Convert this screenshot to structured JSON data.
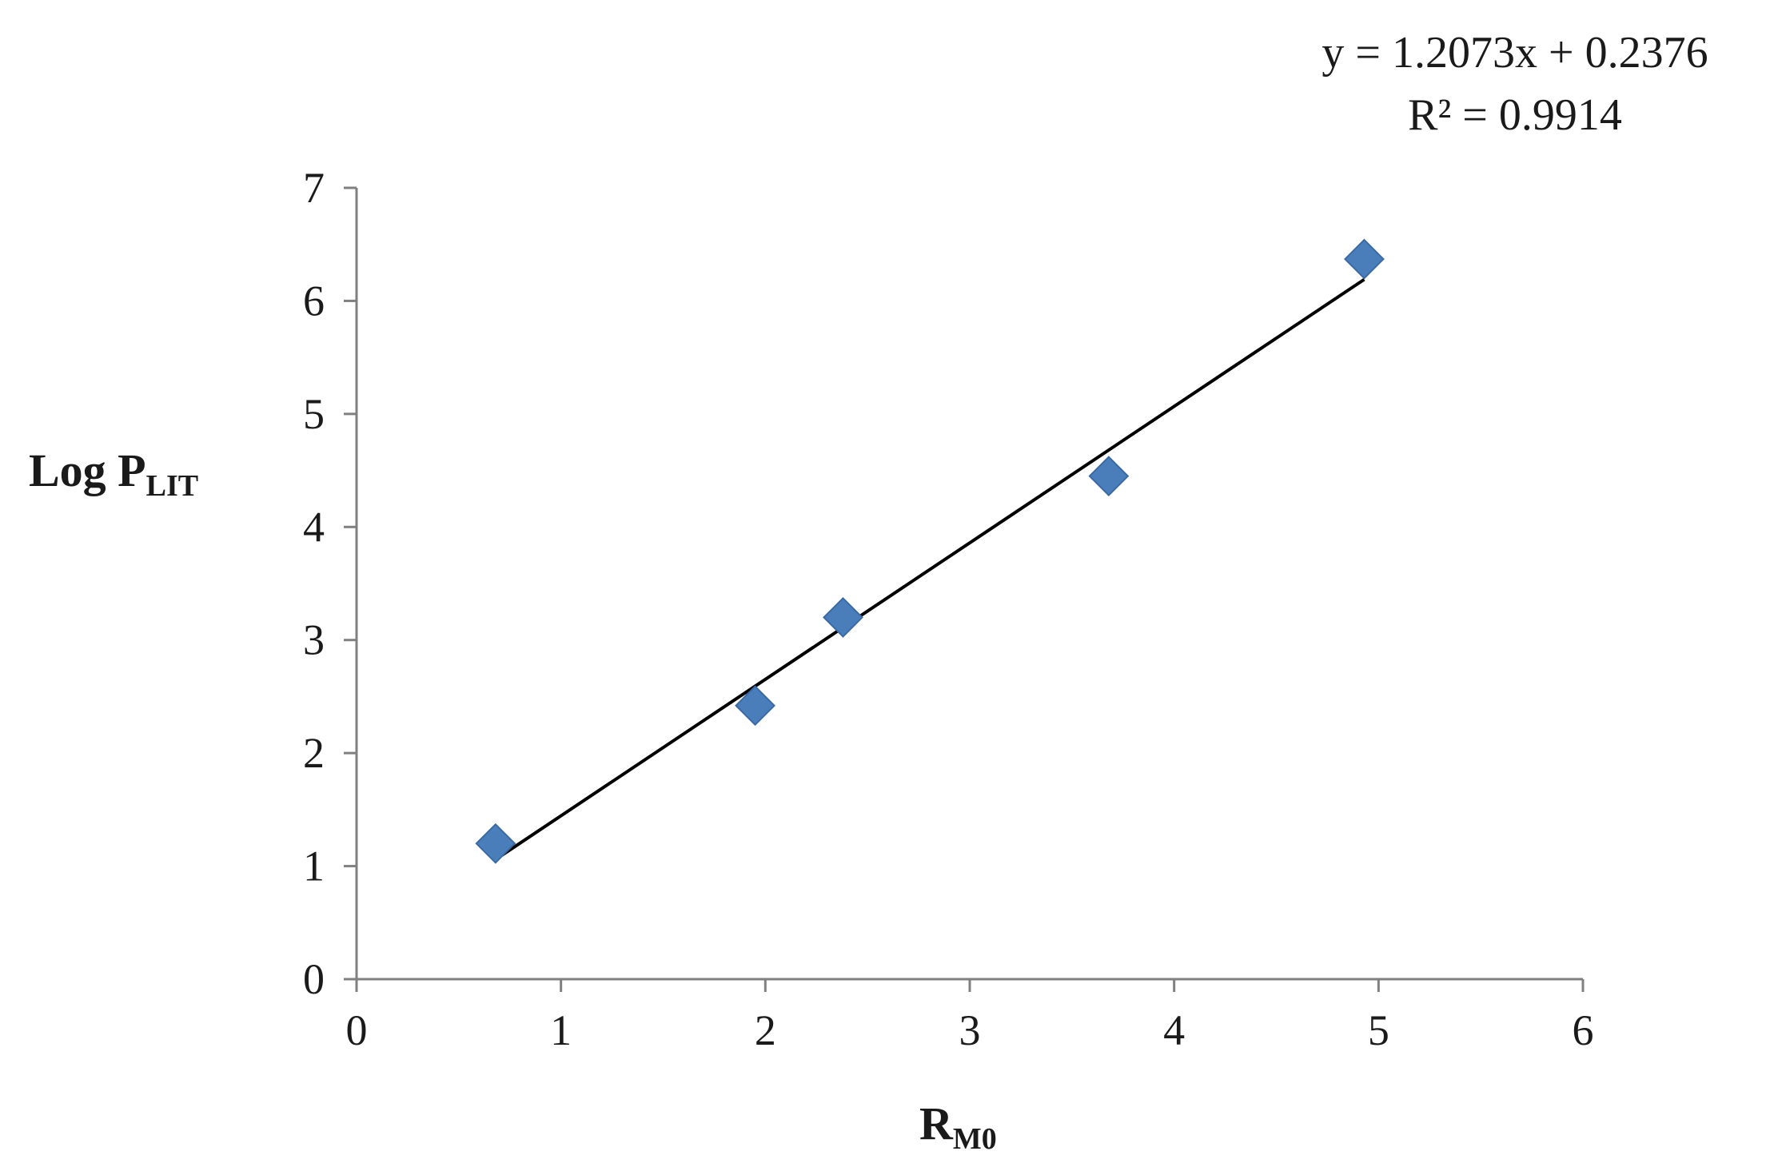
{
  "chart_data": {
    "type": "scatter",
    "title": "",
    "xlabel": "R",
    "xlabel_sub": "M0",
    "ylabel": "Log P",
    "ylabel_sub": "LIT",
    "xlim": [
      0,
      6
    ],
    "ylim": [
      0,
      7
    ],
    "x_ticks": [
      "0",
      "1",
      "2",
      "3",
      "4",
      "5",
      "6"
    ],
    "y_ticks": [
      "0",
      "1",
      "2",
      "3",
      "4",
      "5",
      "6",
      "7"
    ],
    "grid": false,
    "legend": "none",
    "marker_color": "#4a7ebb",
    "marker_shape": "diamond",
    "series": [
      {
        "x": [
          0.68,
          1.95,
          2.38,
          3.68,
          4.93
        ],
        "y": [
          1.2,
          2.42,
          3.2,
          4.45,
          6.37
        ]
      }
    ],
    "trendline": {
      "type": "linear",
      "slope": 1.2073,
      "intercept": 0.2376,
      "x_range": [
        0.68,
        4.93
      ],
      "color": "#000000",
      "equation": "y = 1.2073x + 0.2376",
      "r_squared": "R² = 0.9914"
    }
  }
}
